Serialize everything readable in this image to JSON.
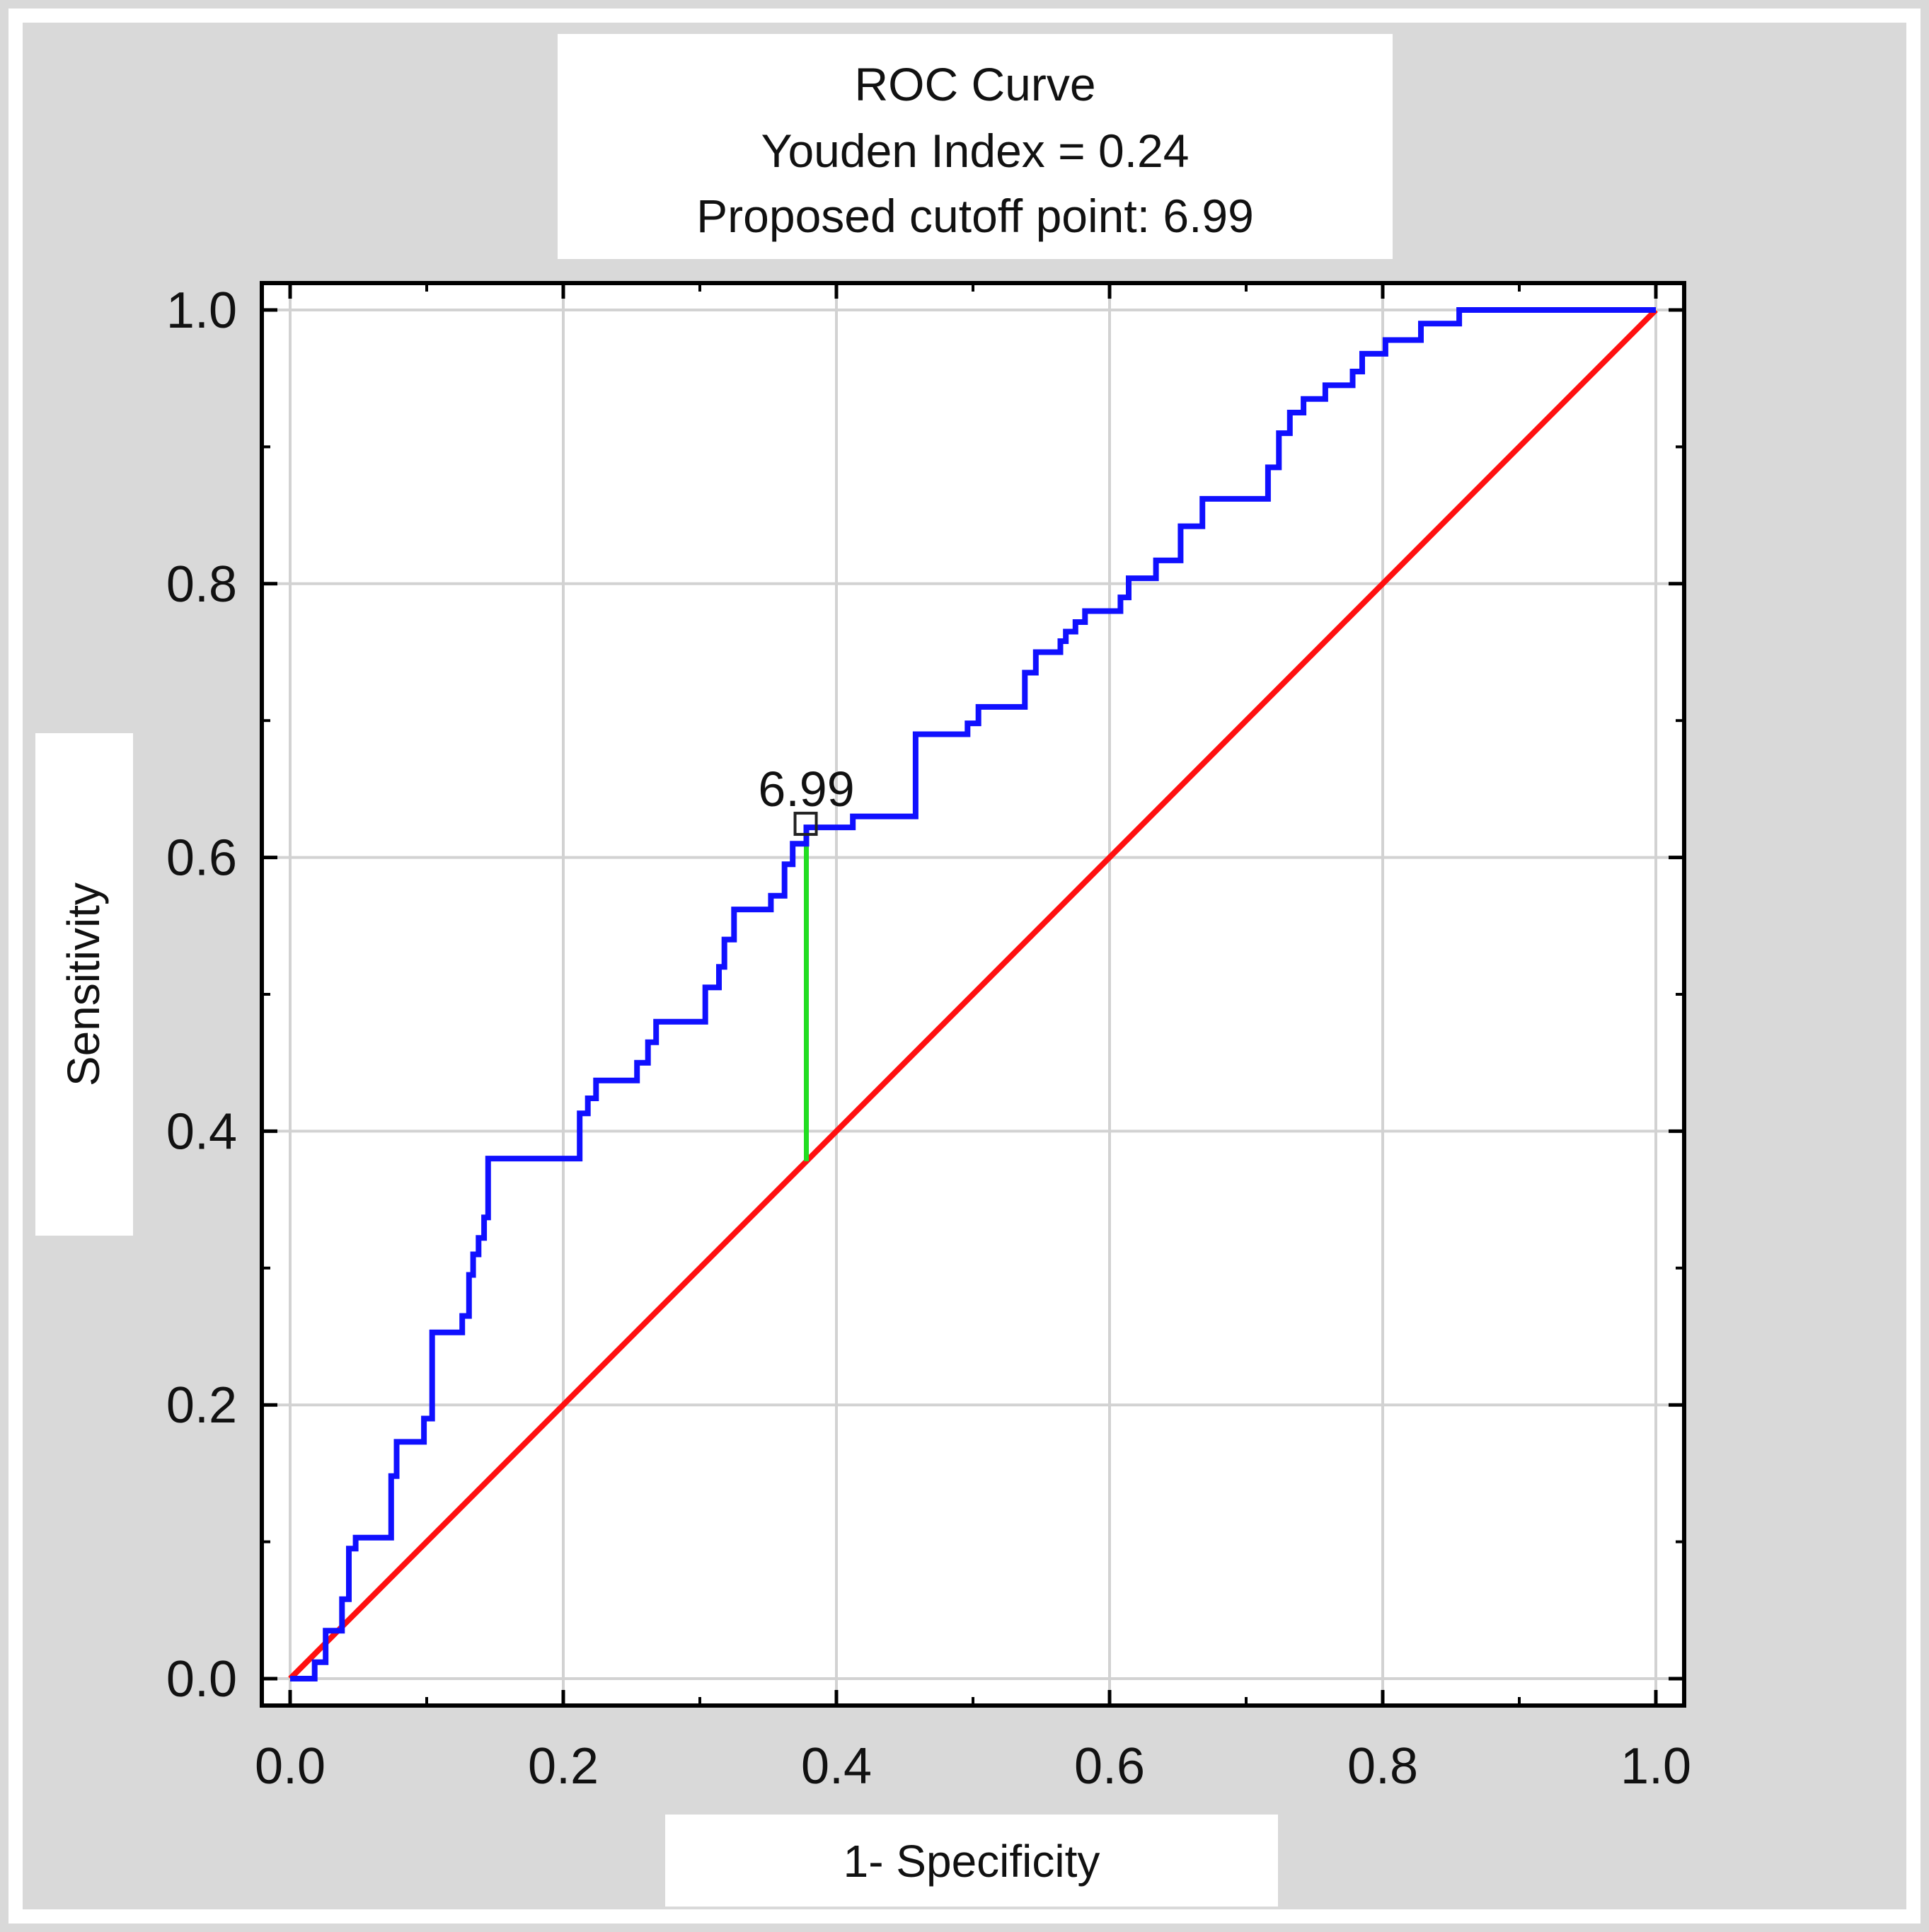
{
  "chart_data": {
    "type": "line",
    "title": [
      "ROC Curve",
      "Youden Index = 0.24",
      "Proposed cutoff point: 6.99"
    ],
    "xlabel": "1- Specificity",
    "ylabel": "Sensitivity",
    "xlim": [
      0.0,
      1.0
    ],
    "ylim": [
      0.0,
      1.0
    ],
    "xticks": [
      "0.0",
      "0.2",
      "0.4",
      "0.6",
      "0.8",
      "1.0"
    ],
    "yticks": [
      "0.0",
      "0.2",
      "0.4",
      "0.6",
      "0.8",
      "1.0"
    ],
    "grid": true,
    "colors": {
      "roc": "#1010ff",
      "diagonal": "#ff1010",
      "youden": "#22dd22",
      "background": "#d9d9d9"
    },
    "series": [
      {
        "key": "roc",
        "x": [
          0.0,
          0.018,
          0.018,
          0.026,
          0.026,
          0.038,
          0.038,
          0.043,
          0.043,
          0.048,
          0.048,
          0.074,
          0.074,
          0.078,
          0.078,
          0.098,
          0.098,
          0.104,
          0.104,
          0.126,
          0.126,
          0.131,
          0.131,
          0.134,
          0.134,
          0.138,
          0.138,
          0.142,
          0.142,
          0.145,
          0.145,
          0.152,
          0.152,
          0.198,
          0.198,
          0.212,
          0.212,
          0.218,
          0.218,
          0.224,
          0.224,
          0.254,
          0.254,
          0.262,
          0.262,
          0.268,
          0.268,
          0.28,
          0.28,
          0.304,
          0.304,
          0.314,
          0.314,
          0.318,
          0.318,
          0.325,
          0.325,
          0.352,
          0.352,
          0.362,
          0.362,
          0.368,
          0.368,
          0.378,
          0.378,
          0.412,
          0.412,
          0.458,
          0.458,
          0.496,
          0.496,
          0.504,
          0.504,
          0.538,
          0.538,
          0.546,
          0.546,
          0.564,
          0.564,
          0.568,
          0.568,
          0.575,
          0.575,
          0.582,
          0.582,
          0.608,
          0.608,
          0.614,
          0.614,
          0.634,
          0.634,
          0.652,
          0.652,
          0.668,
          0.668,
          0.716,
          0.716,
          0.724,
          0.724,
          0.732,
          0.732,
          0.742,
          0.742,
          0.758,
          0.758,
          0.778,
          0.778,
          0.785,
          0.785,
          0.802,
          0.802,
          0.828,
          0.828,
          0.856,
          0.856,
          1.0
        ],
        "y": [
          0.0,
          0.0,
          0.012,
          0.012,
          0.035,
          0.035,
          0.058,
          0.058,
          0.095,
          0.095,
          0.103,
          0.103,
          0.148,
          0.148,
          0.173,
          0.173,
          0.19,
          0.19,
          0.253,
          0.253,
          0.265,
          0.265,
          0.295,
          0.295,
          0.31,
          0.31,
          0.322,
          0.322,
          0.337,
          0.337,
          0.38,
          0.38,
          0.38,
          0.38,
          0.38,
          0.38,
          0.413,
          0.413,
          0.424,
          0.424,
          0.437,
          0.437,
          0.45,
          0.45,
          0.465,
          0.465,
          0.48,
          0.48,
          0.48,
          0.48,
          0.505,
          0.505,
          0.52,
          0.52,
          0.54,
          0.54,
          0.562,
          0.562,
          0.572,
          0.572,
          0.595,
          0.595,
          0.61,
          0.61,
          0.622,
          0.622,
          0.63,
          0.63,
          0.69,
          0.69,
          0.698,
          0.698,
          0.71,
          0.71,
          0.735,
          0.735,
          0.75,
          0.75,
          0.758,
          0.758,
          0.765,
          0.765,
          0.772,
          0.772,
          0.78,
          0.78,
          0.79,
          0.79,
          0.804,
          0.804,
          0.817,
          0.817,
          0.842,
          0.842,
          0.862,
          0.862,
          0.885,
          0.885,
          0.91,
          0.91,
          0.925,
          0.925,
          0.935,
          0.935,
          0.945,
          0.945,
          0.955,
          0.955,
          0.968,
          0.968,
          0.978,
          0.978,
          0.99,
          0.99,
          1.0,
          1.0
        ]
      },
      {
        "key": "diagonal",
        "x": [
          0.0,
          1.0
        ],
        "y": [
          0.0,
          1.0
        ]
      },
      {
        "key": "youden",
        "x": [
          0.378,
          0.378
        ],
        "y": [
          0.378,
          0.622
        ]
      }
    ],
    "cutoff_point": {
      "x": 0.378,
      "y": 0.622,
      "label": "6.99"
    }
  }
}
